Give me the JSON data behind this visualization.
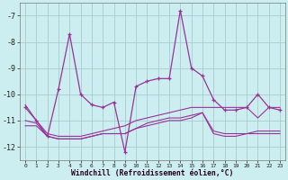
{
  "background_color": "#cceef0",
  "grid_color": "#aacccc",
  "line_color": "#993399",
  "hours": [
    0,
    1,
    2,
    3,
    4,
    5,
    6,
    7,
    8,
    9,
    10,
    11,
    12,
    13,
    14,
    15,
    16,
    17,
    18,
    19,
    20,
    21,
    22,
    23
  ],
  "line_spiky": [
    -10.5,
    -11.0,
    -11.6,
    -9.8,
    -7.7,
    -10.0,
    -10.4,
    -10.5,
    -10.3,
    -12.2,
    -9.7,
    -9.5,
    -9.4,
    -9.4,
    -6.8,
    -9.0,
    -9.3,
    -10.2,
    -10.6,
    -10.6,
    -10.5,
    -10.0,
    -10.5,
    -10.6
  ],
  "line_avg1": [
    -10.4,
    -11.0,
    -11.5,
    -11.6,
    -11.6,
    -11.6,
    -11.5,
    -11.4,
    -11.3,
    -11.2,
    -11.0,
    -10.9,
    -10.8,
    -10.7,
    -10.6,
    -10.5,
    -10.5,
    -10.5,
    -10.5,
    -10.5,
    -10.5,
    -10.9,
    -10.5,
    -10.5
  ],
  "line_avg2": [
    -11.0,
    -11.1,
    -11.6,
    -11.7,
    -11.7,
    -11.7,
    -11.6,
    -11.5,
    -11.5,
    -11.5,
    -11.3,
    -11.1,
    -11.0,
    -10.9,
    -10.9,
    -10.8,
    -10.7,
    -11.4,
    -11.5,
    -11.5,
    -11.5,
    -11.4,
    -11.4,
    -11.4
  ],
  "line_avg3": [
    -11.2,
    -11.2,
    -11.6,
    -11.7,
    -11.7,
    -11.7,
    -11.6,
    -11.5,
    -11.5,
    -11.5,
    -11.3,
    -11.2,
    -11.1,
    -11.0,
    -11.0,
    -10.9,
    -10.7,
    -11.5,
    -11.6,
    -11.6,
    -11.5,
    -11.5,
    -11.5,
    -11.5
  ],
  "xlabel": "Windchill (Refroidissement éolien,°C)",
  "ylim": [
    -12.5,
    -6.5
  ],
  "yticks": [
    -12,
    -11,
    -10,
    -9,
    -8,
    -7
  ],
  "xlim": [
    -0.5,
    23.5
  ]
}
